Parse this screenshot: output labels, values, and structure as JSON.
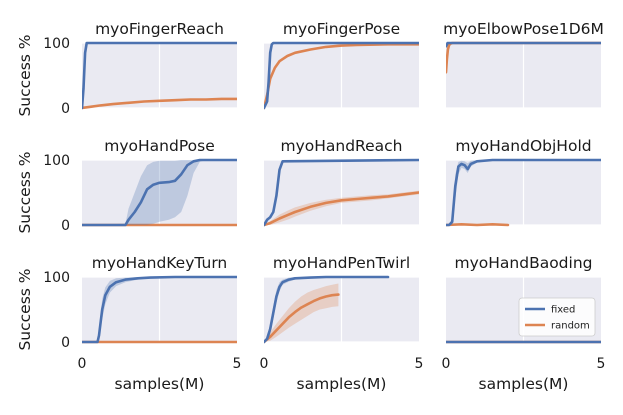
{
  "chart_data": {
    "type": "line",
    "layout": "3x3 grid of small multiples",
    "shared": {
      "ylabel": "Success %",
      "xlabel": "samples(M)",
      "xlim": [
        0,
        5
      ],
      "ylim": [
        0,
        100
      ],
      "xticks": [
        0,
        5
      ],
      "yticks": [
        0,
        100
      ],
      "grid": true,
      "legend_location": "lower-right of myoHandBaoding panel",
      "colors": {
        "fixed": "#4c72b0",
        "random": "#dd8452",
        "panel_bg": "#eaeaf2",
        "grid": "#ffffff"
      }
    },
    "legend": [
      {
        "name": "fixed",
        "color": "#4c72b0"
      },
      {
        "name": "random",
        "color": "#dd8452"
      }
    ],
    "panels": [
      {
        "title": "myoFingerReach",
        "series": [
          {
            "name": "fixed",
            "x": [
              0,
              0.05,
              0.1,
              0.15,
              0.2,
              5
            ],
            "y": [
              0,
              30,
              85,
              100,
              100,
              100
            ]
          },
          {
            "name": "random",
            "x": [
              0,
              0.3,
              0.6,
              1,
              1.5,
              2,
              2.5,
              3,
              3.5,
              4,
              4.5,
              5
            ],
            "y": [
              0,
              2,
              4,
              6,
              8,
              10,
              11,
              12,
              13,
              13,
              14,
              14
            ]
          }
        ]
      },
      {
        "title": "myoFingerPose",
        "series": [
          {
            "name": "fixed",
            "x": [
              0,
              0.1,
              0.15,
              0.2,
              0.25,
              0.3,
              5
            ],
            "y": [
              0,
              10,
              40,
              85,
              98,
              100,
              100
            ]
          },
          {
            "name": "random",
            "x": [
              0,
              0.1,
              0.2,
              0.35,
              0.5,
              0.75,
              1,
              1.5,
              2,
              2.5,
              3,
              4,
              5
            ],
            "y": [
              0,
              20,
              45,
              62,
              72,
              80,
              85,
              90,
              94,
              96,
              97,
              98,
              98
            ]
          }
        ]
      },
      {
        "title": "myoElbowPose1D6M",
        "series": [
          {
            "name": "fixed",
            "x": [
              0,
              0.05,
              0.1,
              5
            ],
            "y": [
              95,
              100,
              100,
              100
            ]
          },
          {
            "name": "random",
            "x": [
              0,
              0.03,
              0.06,
              0.1,
              0.15,
              0.2,
              5
            ],
            "y": [
              55,
              75,
              90,
              97,
              99,
              100,
              100
            ]
          }
        ]
      },
      {
        "title": "myoHandPose",
        "series": [
          {
            "name": "fixed",
            "x": [
              0,
              1.4,
              1.5,
              1.7,
              1.9,
              2.1,
              2.3,
              2.5,
              2.8,
              3.0,
              3.2,
              3.4,
              3.6,
              3.8,
              4.0,
              5
            ],
            "y": [
              0,
              0,
              8,
              20,
              35,
              55,
              62,
              65,
              66,
              68,
              78,
              92,
              98,
              100,
              100,
              100
            ],
            "band_low": [
              0,
              0,
              0,
              0,
              0,
              0,
              2,
              5,
              8,
              12,
              20,
              45,
              80,
              97,
              100,
              100
            ],
            "band_high": [
              0,
              2,
              25,
              50,
              75,
              92,
              97,
              99,
              99,
              99,
              100,
              100,
              100,
              100,
              100,
              100
            ]
          },
          {
            "name": "random",
            "x": [
              0,
              5
            ],
            "y": [
              0,
              0
            ]
          }
        ]
      },
      {
        "title": "myoHandReach",
        "series": [
          {
            "name": "fixed",
            "x": [
              0,
              0.1,
              0.2,
              0.3,
              0.4,
              0.5,
              0.6,
              5
            ],
            "y": [
              0,
              8,
              12,
              20,
              45,
              85,
              98,
              100
            ]
          },
          {
            "name": "random",
            "x": [
              0,
              0.2,
              0.5,
              0.8,
              1,
              1.5,
              2,
              2.5,
              3,
              3.5,
              4,
              4.5,
              5
            ],
            "y": [
              0,
              3,
              10,
              16,
              20,
              28,
              34,
              38,
              40,
              42,
              44,
              47,
              50
            ],
            "band_low": [
              0,
              0,
              4,
              9,
              13,
              22,
              29,
              34,
              36,
              38,
              41,
              44,
              47
            ],
            "band_high": [
              0,
              6,
              16,
              23,
              27,
              34,
              39,
              42,
              44,
              46,
              47,
              50,
              53
            ]
          }
        ]
      },
      {
        "title": "myoHandObjHold",
        "series": [
          {
            "name": "fixed",
            "x": [
              0,
              0.1,
              0.2,
              0.3,
              0.4,
              0.5,
              0.6,
              0.7,
              0.8,
              1,
              1.5,
              2,
              5
            ],
            "y": [
              0,
              0,
              5,
              60,
              90,
              94,
              92,
              86,
              94,
              98,
              100,
              100,
              100
            ],
            "band_low": [
              0,
              0,
              0,
              40,
              78,
              88,
              86,
              80,
              90,
              96,
              100,
              100,
              100
            ],
            "band_high": [
              0,
              0,
              12,
              78,
              97,
              99,
              98,
              95,
              99,
              100,
              100,
              100,
              100
            ]
          },
          {
            "name": "random",
            "x": [
              0,
              0.5,
              1,
              1.5,
              2
            ],
            "y": [
              0,
              1,
              0,
              1,
              0
            ]
          }
        ]
      },
      {
        "title": "myoHandKeyTurn",
        "series": [
          {
            "name": "fixed",
            "x": [
              0,
              0.5,
              0.55,
              0.65,
              0.75,
              0.9,
              1.1,
              1.4,
              1.8,
              2.2,
              3,
              4,
              5
            ],
            "y": [
              0,
              0,
              10,
              50,
              72,
              85,
              92,
              96,
              98,
              99,
              100,
              100,
              100
            ],
            "band_low": [
              0,
              0,
              3,
              35,
              58,
              76,
              86,
              92,
              96,
              98,
              100,
              100,
              100
            ],
            "band_high": [
              0,
              2,
              22,
              66,
              84,
              94,
              98,
              99,
              100,
              100,
              100,
              100,
              100
            ]
          },
          {
            "name": "random",
            "x": [
              0,
              5
            ],
            "y": [
              0,
              0
            ]
          }
        ]
      },
      {
        "title": "myoHandPenTwirl",
        "series": [
          {
            "name": "fixed",
            "x": [
              0,
              0.1,
              0.2,
              0.3,
              0.4,
              0.5,
              0.6,
              0.8,
              1,
              1.5,
              2,
              3,
              4
            ],
            "y": [
              0,
              5,
              20,
              45,
              70,
              85,
              92,
              96,
              98,
              99,
              100,
              100,
              100
            ],
            "band_low": [
              0,
              2,
              12,
              35,
              60,
              78,
              88,
              93,
              96,
              98,
              99,
              99,
              99
            ],
            "band_high": [
              0,
              8,
              28,
              55,
              80,
              92,
              96,
              99,
              100,
              100,
              100,
              100,
              100
            ]
          },
          {
            "name": "random",
            "x": [
              0,
              0.2,
              0.4,
              0.6,
              0.8,
              1,
              1.2,
              1.4,
              1.6,
              1.8,
              2,
              2.2,
              2.4
            ],
            "y": [
              0,
              8,
              18,
              28,
              38,
              46,
              53,
              58,
              63,
              67,
              70,
              72,
              73
            ],
            "band_low": [
              0,
              2,
              8,
              15,
              22,
              28,
              34,
              40,
              46,
              50,
              52,
              54,
              55
            ],
            "band_high": [
              0,
              15,
              28,
              40,
              52,
              62,
              70,
              76,
              80,
              83,
              86,
              88,
              90
            ]
          }
        ]
      },
      {
        "title": "myoHandBaoding",
        "series": [
          {
            "name": "fixed",
            "x": [
              0,
              5
            ],
            "y": [
              0,
              0
            ]
          },
          {
            "name": "random",
            "x": [
              0,
              5
            ],
            "y": [
              0,
              0
            ]
          }
        ]
      }
    ]
  }
}
